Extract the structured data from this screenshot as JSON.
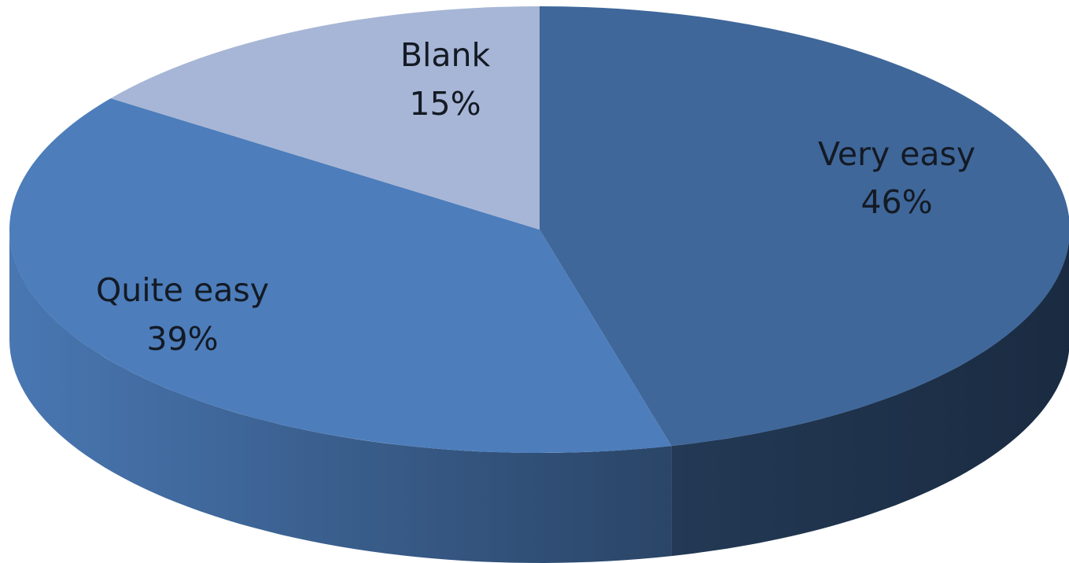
{
  "chart_data": {
    "type": "pie",
    "style": "3d",
    "title": "",
    "categories": [
      "Very easy",
      "Quite easy",
      "Blank"
    ],
    "values": [
      46,
      39,
      15
    ],
    "labels": [
      {
        "category": "Very easy",
        "value_text": "46%"
      },
      {
        "category": "Quite easy",
        "value_text": "39%"
      },
      {
        "category": "Blank",
        "value_text": "15%"
      }
    ],
    "colors": {
      "Very easy": "#3f679a",
      "Quite easy": "#4d7dbb",
      "Blank": "#a7b6d6"
    },
    "legend": "none",
    "start": "top, clockwise"
  }
}
